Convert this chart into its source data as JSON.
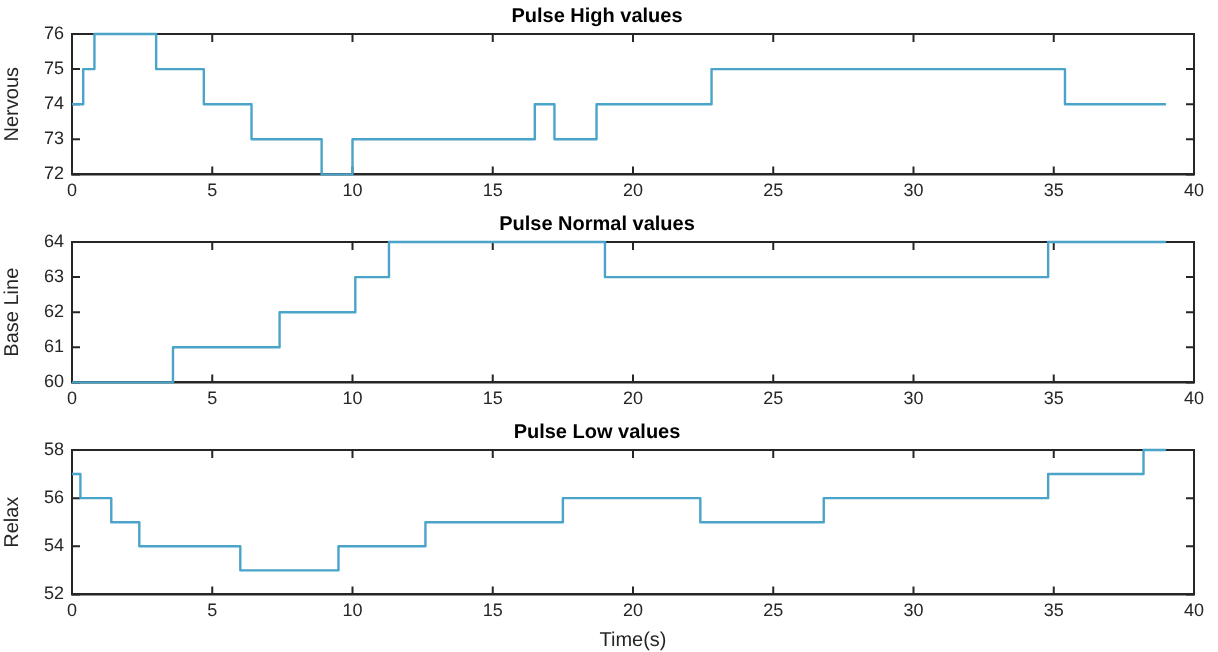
{
  "chart_data": [
    {
      "type": "step",
      "title": "Pulse High values",
      "ylabel": "Nervous",
      "xlim": [
        0,
        40
      ],
      "xticks": [
        0,
        5,
        10,
        15,
        20,
        25,
        30,
        35,
        40
      ],
      "ylim": [
        72,
        76
      ],
      "yticks": [
        72,
        73,
        74,
        75,
        76
      ],
      "grid": false,
      "legend": false,
      "series": [
        {
          "color": "#4aa3c8",
          "x": [
            0,
            0.4,
            0.8,
            3,
            4.7,
            6.4,
            8.9,
            10,
            16.5,
            17.2,
            18.7,
            22.8,
            35.4,
            39
          ],
          "values": [
            74,
            75,
            76,
            75,
            74,
            73,
            72,
            73,
            74,
            73,
            74,
            75,
            74,
            74
          ]
        }
      ]
    },
    {
      "type": "step",
      "title": "Pulse Normal values",
      "ylabel": "Base Line",
      "xlim": [
        0,
        40
      ],
      "xticks": [
        0,
        5,
        10,
        15,
        20,
        25,
        30,
        35,
        40
      ],
      "ylim": [
        60,
        64
      ],
      "yticks": [
        60,
        61,
        62,
        63,
        64
      ],
      "grid": false,
      "legend": false,
      "series": [
        {
          "color": "#4aa3c8",
          "x": [
            0,
            3.6,
            7.4,
            10.1,
            11.3,
            19,
            34.8,
            39
          ],
          "values": [
            60,
            61,
            62,
            63,
            64,
            63,
            64,
            64
          ]
        }
      ]
    },
    {
      "type": "step",
      "title": "Pulse Low values",
      "xlabel": "Time(s)",
      "ylabel": "Relax",
      "xlim": [
        0,
        40
      ],
      "xticks": [
        0,
        5,
        10,
        15,
        20,
        25,
        30,
        35,
        40
      ],
      "ylim": [
        52,
        58
      ],
      "yticks": [
        52,
        54,
        56,
        58
      ],
      "grid": false,
      "legend": false,
      "series": [
        {
          "color": "#4aa3c8",
          "x": [
            0,
            0.3,
            1.4,
            2.4,
            6,
            9.5,
            12.6,
            17.5,
            22.4,
            26.8,
            34.8,
            38.2,
            39
          ],
          "values": [
            57,
            56,
            55,
            54,
            53,
            54,
            55,
            56,
            55,
            56,
            57,
            58,
            58
          ]
        }
      ]
    }
  ]
}
